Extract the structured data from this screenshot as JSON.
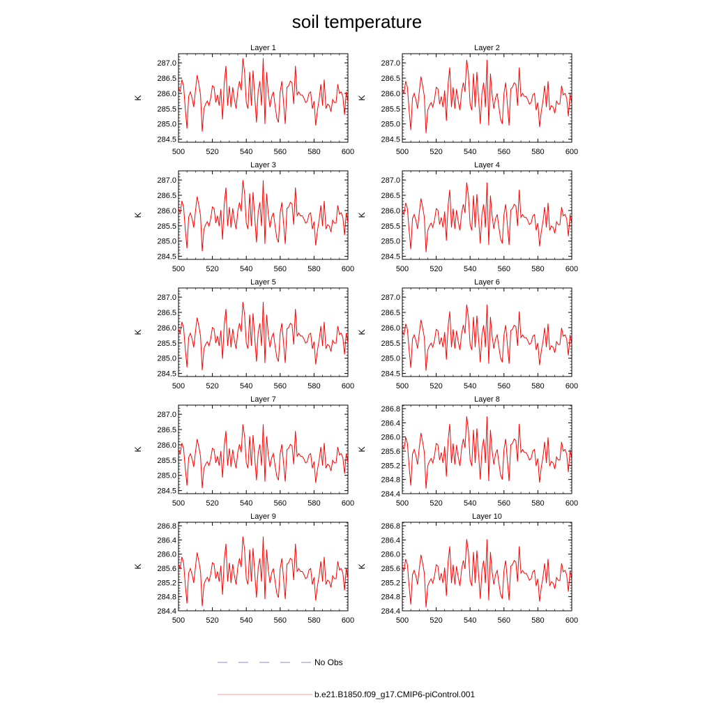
{
  "chart_data": {
    "type": "line",
    "title": "soil temperature",
    "xlabel": "",
    "ylabel": "K",
    "x": [
      500,
      501,
      502,
      503,
      504,
      505,
      506,
      507,
      508,
      509,
      510,
      511,
      512,
      513,
      514,
      515,
      516,
      517,
      518,
      519,
      520,
      521,
      522,
      523,
      524,
      525,
      526,
      527,
      528,
      529,
      530,
      531,
      532,
      533,
      534,
      535,
      536,
      537,
      538,
      539,
      540,
      541,
      542,
      543,
      544,
      545,
      546,
      547,
      548,
      549,
      550,
      551,
      552,
      553,
      554,
      555,
      556,
      557,
      558,
      559,
      560,
      561,
      562,
      563,
      564,
      565,
      566,
      567,
      568,
      569,
      570,
      571,
      572,
      573,
      574,
      575,
      576,
      577,
      578,
      579,
      580,
      581,
      582,
      583,
      584,
      585,
      586,
      587,
      588,
      589,
      590,
      591,
      592,
      593,
      594,
      595,
      596,
      597,
      598,
      599,
      600
    ],
    "base_series": [
      286.2,
      286.05,
      286.45,
      286.25,
      285.5,
      284.85,
      285.9,
      286.05,
      285.85,
      285.55,
      286.1,
      286.6,
      286.3,
      285.95,
      284.75,
      285.5,
      285.65,
      285.75,
      285.6,
      285.85,
      286.25,
      286.2,
      285.7,
      285.95,
      285.6,
      286.15,
      285.15,
      286.35,
      286.9,
      285.6,
      286.25,
      285.55,
      286.2,
      285.8,
      285.5,
      286.1,
      286.4,
      286.1,
      287.15,
      286.7,
      285.7,
      285.5,
      286.7,
      285.6,
      286.75,
      285.9,
      285.05,
      286.05,
      286.4,
      285.6,
      287.15,
      285.0,
      286.7,
      286.0,
      285.55,
      285.9,
      286.05,
      285.6,
      285.2,
      285.05,
      286.05,
      286.4,
      285.7,
      285.0,
      286.2,
      286.25,
      286.4,
      286.35,
      285.65,
      286.9,
      285.95,
      286.05,
      285.95,
      285.95,
      285.85,
      285.7,
      285.75,
      286.0,
      286.05,
      285.5,
      285.75,
      284.95,
      285.45,
      285.8,
      286.3,
      285.6,
      286.45,
      285.5,
      285.65,
      285.6,
      285.4,
      285.8,
      285.7,
      285.7,
      286.3,
      286.0,
      286.05,
      285.9,
      285.3,
      286.05,
      285.7
    ],
    "panels": [
      {
        "title": "Layer 1",
        "ylim": [
          284.4,
          287.3
        ],
        "yticks": [
          "284.5",
          "285.0",
          "285.5",
          "286.0",
          "286.5",
          "287.0"
        ],
        "ytick_values": [
          284.5,
          285.0,
          285.5,
          286.0,
          286.5,
          287.0
        ],
        "shift": 0.0,
        "amp": 1.0
      },
      {
        "title": "Layer 2",
        "ylim": [
          284.4,
          287.3
        ],
        "yticks": [
          "284.5",
          "285.0",
          "285.5",
          "286.0",
          "286.5",
          "287.0"
        ],
        "ytick_values": [
          284.5,
          285.0,
          285.5,
          286.0,
          286.5,
          287.0
        ],
        "shift": -0.05,
        "amp": 1.0
      },
      {
        "title": "Layer 3",
        "ylim": [
          284.4,
          287.3
        ],
        "yticks": [
          "284.5",
          "285.0",
          "285.5",
          "286.0",
          "286.5",
          "287.0"
        ],
        "ytick_values": [
          284.5,
          285.0,
          285.5,
          286.0,
          286.5,
          287.0
        ],
        "shift": -0.12,
        "amp": 0.97
      },
      {
        "title": "Layer 4",
        "ylim": [
          284.4,
          287.3
        ],
        "yticks": [
          "284.5",
          "285.0",
          "285.5",
          "286.0",
          "286.5",
          "287.0"
        ],
        "ytick_values": [
          284.5,
          285.0,
          285.5,
          286.0,
          286.5,
          287.0
        ],
        "shift": -0.17,
        "amp": 0.95
      },
      {
        "title": "Layer 5",
        "ylim": [
          284.4,
          287.3
        ],
        "yticks": [
          "284.5",
          "285.0",
          "285.5",
          "286.0",
          "286.5",
          "287.0"
        ],
        "ytick_values": [
          284.5,
          285.0,
          285.5,
          286.0,
          286.5,
          287.0
        ],
        "shift": -0.22,
        "amp": 0.93
      },
      {
        "title": "Layer 6",
        "ylim": [
          284.4,
          287.3
        ],
        "yticks": [
          "284.5",
          "285.0",
          "285.5",
          "286.0",
          "286.5",
          "287.0"
        ],
        "ytick_values": [
          284.5,
          285.0,
          285.5,
          286.0,
          286.5,
          287.0
        ],
        "shift": -0.27,
        "amp": 0.9
      },
      {
        "title": "Layer 7",
        "ylim": [
          284.4,
          287.3
        ],
        "yticks": [
          "284.5",
          "285.0",
          "285.5",
          "286.0",
          "286.5",
          "287.0"
        ],
        "ytick_values": [
          284.5,
          285.0,
          285.5,
          286.0,
          286.5,
          287.0
        ],
        "shift": -0.32,
        "amp": 0.87
      },
      {
        "title": "Layer 8",
        "ylim": [
          284.4,
          286.9
        ],
        "yticks": [
          "284.4",
          "284.8",
          "285.2",
          "285.6",
          "286.0",
          "286.4",
          "286.8"
        ],
        "ytick_values": [
          284.4,
          284.8,
          285.2,
          285.6,
          286.0,
          286.4,
          286.8
        ],
        "shift": -0.38,
        "amp": 0.85
      },
      {
        "title": "Layer 9",
        "ylim": [
          284.4,
          286.9
        ],
        "yticks": [
          "284.4",
          "284.8",
          "285.2",
          "285.6",
          "286.0",
          "286.4",
          "286.8"
        ],
        "ytick_values": [
          284.4,
          284.8,
          285.2,
          285.6,
          286.0,
          286.4,
          286.8
        ],
        "shift": -0.43,
        "amp": 0.82
      },
      {
        "title": "Layer 10",
        "ylim": [
          284.4,
          286.9
        ],
        "yticks": [
          "284.4",
          "284.8",
          "285.2",
          "285.6",
          "286.0",
          "286.4",
          "286.8"
        ],
        "ytick_values": [
          284.4,
          284.8,
          285.2,
          285.6,
          286.0,
          286.4,
          286.8
        ],
        "shift": -0.48,
        "amp": 0.8
      }
    ],
    "xlim": [
      500,
      600
    ],
    "xticks": [
      "500",
      "520",
      "540",
      "560",
      "580",
      "600"
    ],
    "xtick_values": [
      500,
      520,
      540,
      560,
      580,
      600
    ],
    "series": [
      {
        "name": "No Obs",
        "color": "#8a8ad8",
        "style": "dashed"
      },
      {
        "name": "b.e21.B1850.f09_g17.CMIP6-piControl.001",
        "color": "#ff0000",
        "style": "solid"
      }
    ],
    "legend": [
      {
        "label": "No Obs",
        "color": "#8a8ad8",
        "style": "dashed"
      },
      {
        "label": "b.e21.B1850.f09_g17.CMIP6-piControl.001",
        "color": "#ff9999",
        "style": "solid"
      }
    ]
  }
}
